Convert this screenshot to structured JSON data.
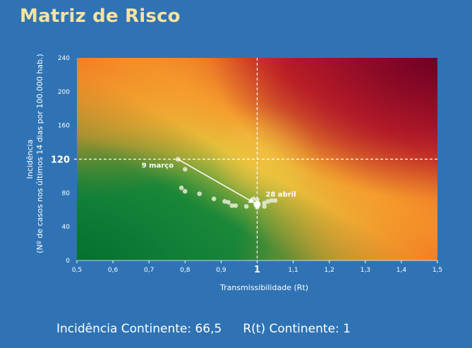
{
  "title": "Matriz de Risco",
  "footer": {
    "incidence": "Incidência Continente: 66,5",
    "rt": "R(t) Continente: 1"
  },
  "colors": {
    "background": "#2f73b4",
    "title": "#f7e3a1",
    "green": "#0a7a3a",
    "yellow": "#e8c23a",
    "orange": "#f47a22",
    "red": "#d42a1e",
    "darkred": "#7a0026"
  },
  "chart_data": {
    "type": "scatter",
    "xlabel": "Transmissibilidade (Rt)",
    "ylabel_line1": "Incidência",
    "ylabel_line2": "(Nº de casos nos últimos 14 dias por 100.000 hab.)",
    "xlim": [
      0.5,
      1.5
    ],
    "ylim": [
      0,
      240
    ],
    "x_ticks": [
      {
        "v": 0.5,
        "label": "0,5"
      },
      {
        "v": 0.6,
        "label": "0,6"
      },
      {
        "v": 0.7,
        "label": "0,7"
      },
      {
        "v": 0.8,
        "label": "0,8"
      },
      {
        "v": 0.9,
        "label": "0,9"
      },
      {
        "v": 1.0,
        "label": "1",
        "major": true
      },
      {
        "v": 1.1,
        "label": "1,1"
      },
      {
        "v": 1.2,
        "label": "1,2"
      },
      {
        "v": 1.3,
        "label": "1,3"
      },
      {
        "v": 1.4,
        "label": "1,4"
      },
      {
        "v": 1.5,
        "label": "1,5"
      }
    ],
    "y_ticks": [
      {
        "v": 0,
        "label": "0"
      },
      {
        "v": 40,
        "label": "40"
      },
      {
        "v": 80,
        "label": "80"
      },
      {
        "v": 120,
        "label": "120",
        "major": true
      },
      {
        "v": 160,
        "label": "160"
      },
      {
        "v": 200,
        "label": "200"
      },
      {
        "v": 240,
        "label": "240"
      }
    ],
    "threshold_x": 1,
    "threshold_y": 120,
    "points": [
      {
        "x": 0.78,
        "y": 120
      },
      {
        "x": 0.8,
        "y": 108
      },
      {
        "x": 0.79,
        "y": 86
      },
      {
        "x": 0.8,
        "y": 82
      },
      {
        "x": 0.84,
        "y": 79
      },
      {
        "x": 0.88,
        "y": 73
      },
      {
        "x": 0.91,
        "y": 70
      },
      {
        "x": 0.92,
        "y": 69
      },
      {
        "x": 0.93,
        "y": 65
      },
      {
        "x": 0.94,
        "y": 65
      },
      {
        "x": 0.97,
        "y": 64
      },
      {
        "x": 1.0,
        "y": 63
      },
      {
        "x": 1.02,
        "y": 64
      },
      {
        "x": 1.02,
        "y": 68
      },
      {
        "x": 1.03,
        "y": 70
      },
      {
        "x": 1.04,
        "y": 71
      },
      {
        "x": 1.05,
        "y": 71
      },
      {
        "x": 1.0,
        "y": 72
      },
      {
        "x": 0.99,
        "y": 73
      }
    ],
    "current_point": {
      "x": 1.0,
      "y": 66.5
    },
    "annotations": [
      {
        "text": "9 março",
        "x": 0.78,
        "y": 120
      },
      {
        "text": "28 abril",
        "x": 1.0,
        "y": 66.5
      }
    ]
  }
}
